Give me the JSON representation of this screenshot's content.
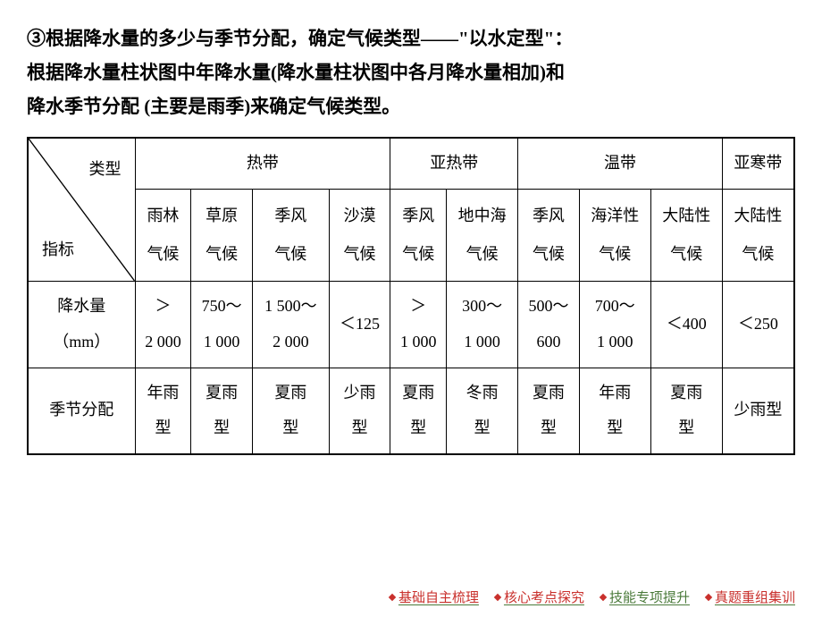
{
  "intro": {
    "line1": "③根据降水量的多少与季节分配，确定气候类型——\"以水定型\"：",
    "line2": "根据降水量柱状图中年降水量(降水量柱状图中各月降水量相加)和",
    "line3": "降水季节分配 (主要是雨季)来确定气候类型。"
  },
  "table": {
    "header_diag_top": "类型",
    "header_diag_bottom": "指标",
    "zones": [
      "热带",
      "亚热带",
      "温带",
      "亚寒带"
    ],
    "climates": {
      "tropical": [
        "雨林\n气候",
        "草原\n气候",
        "季风\n气候",
        "沙漠\n气候"
      ],
      "subtropical": [
        "季风\n气候",
        "地中海\n气候"
      ],
      "temperate": [
        "季风\n气候",
        "海洋性\n气候",
        "大陆性\n气候"
      ],
      "subarctic": [
        "大陆性\n气候"
      ]
    },
    "row_labels": {
      "precipitation": "降水量\n（mm）",
      "season": "季节分配"
    },
    "precipitation": [
      "＞\n2 000",
      "750～\n1 000",
      "1 500～\n2 000",
      "＜125",
      "＞\n1 000",
      "300～\n1 000",
      "500～\n600",
      "700～\n1 000",
      "＜400",
      "＜250"
    ],
    "season": [
      "年雨\n型",
      "夏雨\n型",
      "夏雨\n型",
      "少雨\n型",
      "夏雨\n型",
      "冬雨\n型",
      "夏雨\n型",
      "年雨\n型",
      "夏雨\n型",
      "少雨型"
    ]
  },
  "nav": {
    "items": [
      "基础自主梳理",
      "核心考点探究",
      "技能专项提升",
      "真题重组集训"
    ]
  },
  "colors": {
    "text": "#000000",
    "border": "#000000",
    "background": "#ffffff",
    "nav_red": "#c9302c",
    "nav_green": "#4a7a3a"
  }
}
